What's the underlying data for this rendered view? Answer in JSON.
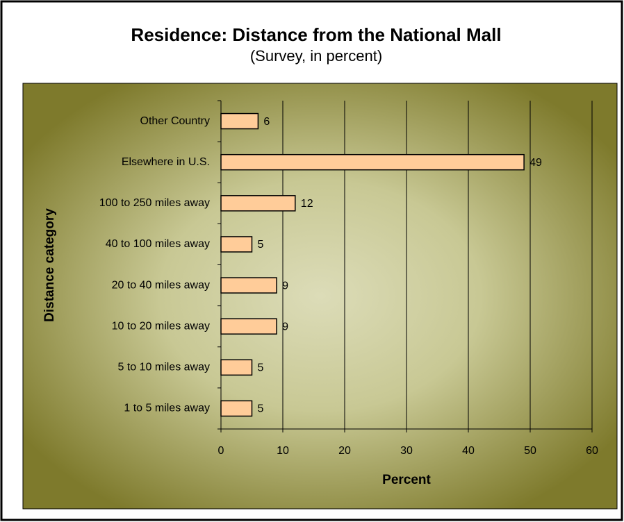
{
  "chart_data": {
    "type": "bar",
    "orientation": "horizontal",
    "title": "Residence: Distance from the National Mall",
    "subtitle": "(Survey, in percent)",
    "x_label": "Percent",
    "y_label": "Distance category",
    "categories": [
      "1 to 5 miles away",
      "5 to 10 miles away",
      "10 to 20 miles away",
      "20 to 40 miles away",
      "40 to 100 miles away",
      "100 to 250 miles away",
      "Elsewhere in U.S.",
      "Other Country"
    ],
    "values": [
      5,
      5,
      9,
      9,
      5,
      12,
      49,
      6
    ],
    "color": "#ffcc99",
    "xlim": [
      0,
      60
    ],
    "xticks": [
      0,
      10,
      20,
      30,
      40,
      50,
      60
    ],
    "grid": true
  }
}
